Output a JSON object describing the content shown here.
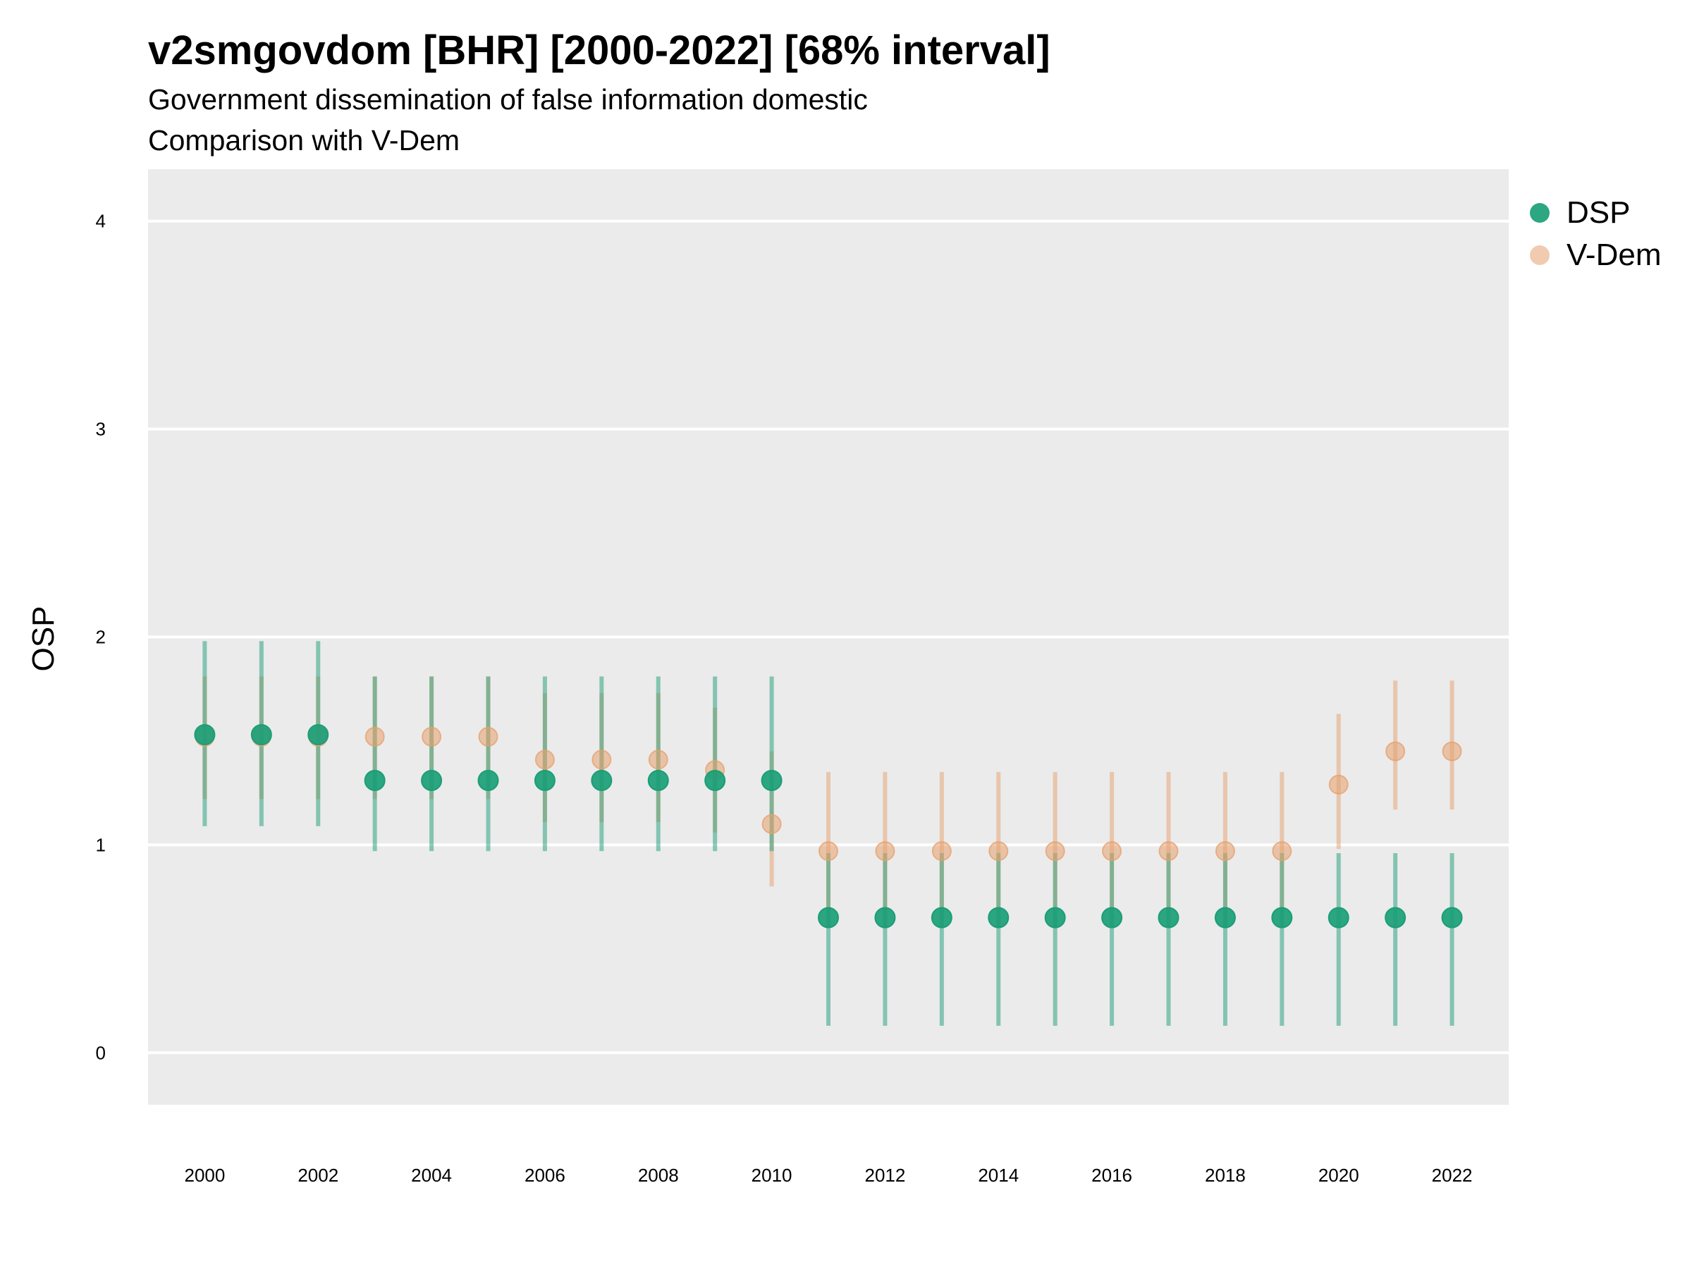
{
  "title": "v2smgovdom [BHR] [2000-2022] [68% interval]",
  "subtitle_line1": "Government dissemination of false information domestic",
  "subtitle_line2": "Comparison with V-Dem",
  "chart_data": {
    "type": "scatter",
    "ylabel": "OSP",
    "xlabel": "",
    "xlim": [
      1999,
      2023
    ],
    "ylim": [
      -0.25,
      4.25
    ],
    "yticks": [
      0,
      1,
      2,
      3,
      4
    ],
    "xticks": [
      2000,
      2002,
      2004,
      2006,
      2008,
      2010,
      2012,
      2014,
      2016,
      2018,
      2020,
      2022
    ],
    "grid": true,
    "legend_position": "right",
    "x": [
      2000,
      2001,
      2002,
      2003,
      2004,
      2005,
      2006,
      2007,
      2008,
      2009,
      2010,
      2011,
      2012,
      2013,
      2014,
      2015,
      2016,
      2017,
      2018,
      2019,
      2020,
      2021,
      2022
    ],
    "series": [
      {
        "name": "V-Dem",
        "color": "#E6A06E",
        "values": [
          1.52,
          1.52,
          1.52,
          1.52,
          1.52,
          1.52,
          1.41,
          1.41,
          1.41,
          1.36,
          1.1,
          0.97,
          0.97,
          0.97,
          0.97,
          0.97,
          0.97,
          0.97,
          0.97,
          0.97,
          1.29,
          1.45,
          1.45
        ],
        "lower": [
          1.22,
          1.22,
          1.22,
          1.22,
          1.22,
          1.22,
          1.11,
          1.11,
          1.11,
          1.06,
          0.8,
          0.6,
          0.6,
          0.6,
          0.6,
          0.6,
          0.6,
          0.6,
          0.6,
          0.6,
          0.98,
          1.17,
          1.17
        ],
        "upper": [
          1.81,
          1.81,
          1.81,
          1.81,
          1.81,
          1.81,
          1.73,
          1.73,
          1.73,
          1.66,
          1.45,
          1.35,
          1.35,
          1.35,
          1.35,
          1.35,
          1.35,
          1.35,
          1.35,
          1.35,
          1.63,
          1.79,
          1.79
        ]
      },
      {
        "name": "DSP",
        "color": "#1B9E77",
        "values": [
          1.53,
          1.53,
          1.53,
          1.31,
          1.31,
          1.31,
          1.31,
          1.31,
          1.31,
          1.31,
          1.31,
          0.65,
          0.65,
          0.65,
          0.65,
          0.65,
          0.65,
          0.65,
          0.65,
          0.65,
          0.65,
          0.65,
          0.65
        ],
        "lower": [
          1.09,
          1.09,
          1.09,
          0.97,
          0.97,
          0.97,
          0.97,
          0.97,
          0.97,
          0.97,
          0.97,
          0.13,
          0.13,
          0.13,
          0.13,
          0.13,
          0.13,
          0.13,
          0.13,
          0.13,
          0.13,
          0.13,
          0.13
        ],
        "upper": [
          1.98,
          1.98,
          1.98,
          1.81,
          1.81,
          1.81,
          1.81,
          1.81,
          1.81,
          1.81,
          1.81,
          0.96,
          0.96,
          0.96,
          0.96,
          0.96,
          0.96,
          0.96,
          0.96,
          0.96,
          0.96,
          0.96,
          0.96
        ]
      }
    ]
  }
}
